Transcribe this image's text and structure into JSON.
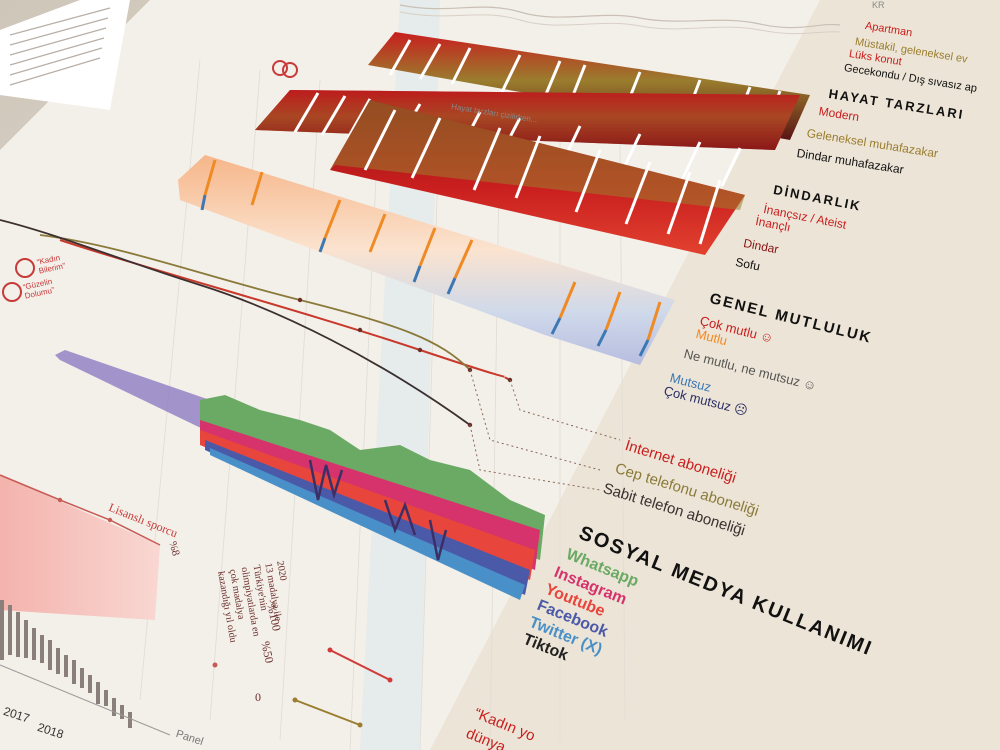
{
  "colors": {
    "paper": "#f2ede6",
    "background": "#d9d2c8",
    "red_dark": "#7a1a1a",
    "red": "#c81e1e",
    "olive": "#9a7d2e",
    "orange": "#f08a24",
    "blue": "#3b78b4",
    "navy": "#2b2f66",
    "whatsapp": "#6aaa64",
    "instagram": "#d6336c",
    "youtube": "#e8453c",
    "facebook": "#4b5aa8",
    "twitter": "#4a90c8",
    "tiktok": "#222222"
  },
  "sections": {
    "housing": {
      "items": [
        "Apartman",
        "Müstakil, geleneksel ev",
        "Lüks konut",
        "Gecekondu / Dış sıvasız ap"
      ]
    },
    "lifestyle": {
      "title": "HAYAT TARZLARI",
      "items": [
        "Modern",
        "Geleneksel muhafazakar",
        "Dindar muhafazakar"
      ]
    },
    "religiosity": {
      "title": "DİNDARLIK",
      "items": [
        "İnançsız / Ateist",
        "İnançlı",
        "Dindar",
        "Sofu"
      ]
    },
    "happiness": {
      "title": "GENEL MUTLULUK",
      "items": [
        "Çok mutlu ☺",
        "Mutlu",
        "Ne mutlu, ne mutsuz ☺",
        "Mutsuz",
        "Çok mutsuz ☹"
      ]
    },
    "subscriptions": {
      "items": [
        "İnternet aboneliği",
        "Cep telefonu aboneliği",
        "Sabit telefon aboneliği"
      ]
    },
    "social_media": {
      "title": "SOSYAL MEDYA KULLANIMI",
      "items": [
        "Whatsapp",
        "Instagram",
        "Youtube",
        "Facebook",
        "Twitter (X)",
        "Tiktok"
      ]
    }
  },
  "annotations": {
    "sport_label": "Lisanslı sporcu",
    "olympics_note": "2020\n13 madalya ile\nTürkiye'nin\nolimpiyatlarda en\nçok madalya\nkazandığı yıl oldu",
    "pct_100": "%100",
    "pct_50": "%50",
    "pct_zero": "0",
    "pct_side": "%8",
    "year_2017": "2017",
    "year_2018": "2018",
    "bottom_quote": "“Kadın yo",
    "bottom_quote_2": "dünya",
    "bottom_panel": "Panel",
    "left_badge_1": "“Kadın\nBilerim”",
    "left_badge_2": "“Güzelin\nDolumu”",
    "top_note": "Hayat tarzları çizilirken...",
    "kr_text": "KR"
  }
}
